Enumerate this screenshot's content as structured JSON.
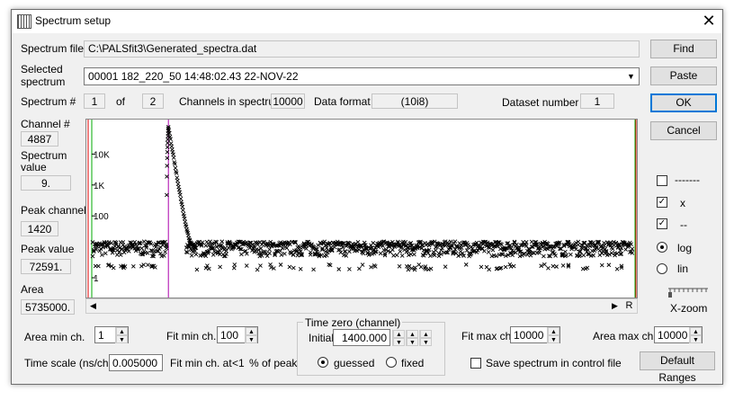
{
  "window": {
    "title": "Spectrum setup",
    "close_glyph": "✕"
  },
  "spectrum_file": {
    "label": "Spectrum file",
    "value": "C:\\PALSfit3\\Generated_spectra.dat"
  },
  "selected_spectrum": {
    "label_line1": "Selected",
    "label_line2": "spectrum",
    "value": "00001 182_220_50 14:48:02.43 22-NOV-22"
  },
  "info_row": {
    "spectrum_label": "Spectrum #",
    "spectrum_value": "1",
    "of_label": "of",
    "of_value": "2",
    "channels_label": "Channels in spectrum",
    "channels_value": "10000",
    "format_label": "Data format",
    "format_value": "(10i8)",
    "dataset_label": "Dataset number",
    "dataset_value": "1"
  },
  "left_panel": {
    "channel_label": "Channel #",
    "channel_value": "4887",
    "spectrum_value_label1": "Spectrum",
    "spectrum_value_label2": "value",
    "spectrum_value": "9.",
    "peak_channel_label": "Peak channel",
    "peak_channel_value": "1420",
    "peak_value_label": "Peak value",
    "peak_value": "72591.",
    "area_label": "Area",
    "area_value": "5735000."
  },
  "buttons": {
    "find": "Find",
    "paste": "Paste",
    "ok": "OK",
    "cancel": "Cancel",
    "default_ranges": "Default Ranges",
    "scroll_r": "R"
  },
  "display_options": [
    {
      "label": "-------",
      "checked": false
    },
    {
      "label": "x",
      "checked": true
    },
    {
      "label": "--",
      "checked": true
    }
  ],
  "scale": {
    "log_label": "log",
    "lin_label": "lin",
    "selected": "log"
  },
  "xzoom_label": "X-zoom",
  "chart_data": {
    "type": "scatter",
    "y_scale": "log",
    "y_tick_labels": [
      "10K",
      "1K",
      "100",
      "1"
    ],
    "peak_channel": 1420,
    "peak_value": 72591,
    "background_level": 9
  },
  "bottom": {
    "area_min_label": "Area min ch.",
    "area_min_value": "1",
    "fit_min_label": "Fit min ch.",
    "fit_min_value": "100",
    "time_zero_title": "Time zero (channel)",
    "initial_label": "Initial",
    "initial_value": "1400.000",
    "guessed_label": "guessed",
    "fixed_label": "fixed",
    "time_zero_mode": "guessed",
    "fit_max_label": "Fit max ch.",
    "fit_max_value": "10000",
    "area_max_label": "Area max ch.",
    "area_max_value": "10000",
    "time_scale_label": "Time scale (ns/ch.)",
    "time_scale_value": "0.005000",
    "fit_min_at_label": "Fit min ch. at",
    "fit_min_at_value": "<1",
    "fit_min_at_suffix": "% of peak",
    "save_label": "Save spectrum in control file"
  }
}
